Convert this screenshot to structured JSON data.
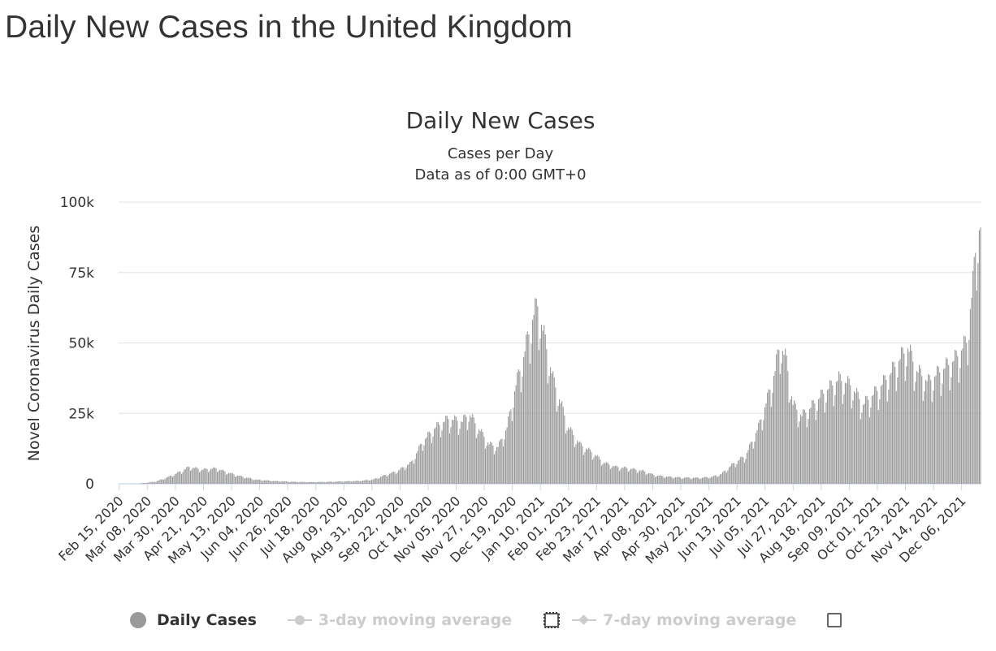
{
  "page": {
    "title": "Daily New Cases in the United Kingdom"
  },
  "chart_data": {
    "type": "bar",
    "title": "Daily New Cases",
    "subtitle_lines": [
      "Cases per Day",
      "Data as of 0:00 GMT+0"
    ],
    "ylabel": "Novel Coronavirus Daily Cases",
    "ylim": [
      0,
      100000
    ],
    "y_ticks": [
      0,
      25000,
      50000,
      75000,
      100000
    ],
    "y_tick_labels": [
      "0",
      "25k",
      "50k",
      "75k",
      "100k"
    ],
    "x_start": "2020-02-15",
    "x_end": "2021-12-21",
    "x_tick_labels": [
      "Feb 15, 2020",
      "Mar 08, 2020",
      "Mar 30, 2020",
      "Apr 21, 2020",
      "May 13, 2020",
      "Jun 04, 2020",
      "Jun 26, 2020",
      "Jul 18, 2020",
      "Aug 09, 2020",
      "Aug 31, 2020",
      "Sep 22, 2020",
      "Oct 14, 2020",
      "Nov 05, 2020",
      "Nov 27, 2020",
      "Dec 19, 2020",
      "Jan 10, 2021",
      "Feb 01, 2021",
      "Feb 23, 2021",
      "Mar 17, 2021",
      "Apr 08, 2021",
      "Apr 30, 2021",
      "May 22, 2021",
      "Jun 13, 2021",
      "Jul 05, 2021",
      "Jul 27, 2021",
      "Aug 18, 2021",
      "Sep 09, 2021",
      "Oct 01, 2021",
      "Oct 23, 2021",
      "Nov 14, 2021",
      "Dec 06, 2021"
    ],
    "grid": true,
    "bar_color": "#999999",
    "series": [
      {
        "name": "Daily Cases",
        "anchors": [
          [
            "2020-02-15",
            0
          ],
          [
            "2020-03-01",
            50
          ],
          [
            "2020-03-15",
            800
          ],
          [
            "2020-03-25",
            2500
          ],
          [
            "2020-04-04",
            4500
          ],
          [
            "2020-04-10",
            6000
          ],
          [
            "2020-04-20",
            5000
          ],
          [
            "2020-05-01",
            5500
          ],
          [
            "2020-05-10",
            4000
          ],
          [
            "2020-05-20",
            2700
          ],
          [
            "2020-06-01",
            1500
          ],
          [
            "2020-06-15",
            1000
          ],
          [
            "2020-07-01",
            700
          ],
          [
            "2020-07-15",
            600
          ],
          [
            "2020-08-01",
            750
          ],
          [
            "2020-08-20",
            1000
          ],
          [
            "2020-09-01",
            1500
          ],
          [
            "2020-09-10",
            3000
          ],
          [
            "2020-09-20",
            4500
          ],
          [
            "2020-10-01",
            7500
          ],
          [
            "2020-10-10",
            15000
          ],
          [
            "2020-10-20",
            20000
          ],
          [
            "2020-10-30",
            23000
          ],
          [
            "2020-11-10",
            22000
          ],
          [
            "2020-11-15",
            25000
          ],
          [
            "2020-11-25",
            18000
          ],
          [
            "2020-12-01",
            14000
          ],
          [
            "2020-12-08",
            13000
          ],
          [
            "2020-12-15",
            20000
          ],
          [
            "2020-12-22",
            35000
          ],
          [
            "2020-12-28",
            45000
          ],
          [
            "2021-01-01",
            53000
          ],
          [
            "2021-01-05",
            60000
          ],
          [
            "2021-01-08",
            63000
          ],
          [
            "2021-01-14",
            50000
          ],
          [
            "2021-01-20",
            37000
          ],
          [
            "2021-01-25",
            30000
          ],
          [
            "2021-02-01",
            20000
          ],
          [
            "2021-02-10",
            14000
          ],
          [
            "2021-02-20",
            11000
          ],
          [
            "2021-03-01",
            7500
          ],
          [
            "2021-03-10",
            6000
          ],
          [
            "2021-03-20",
            5500
          ],
          [
            "2021-04-01",
            4500
          ],
          [
            "2021-04-10",
            3000
          ],
          [
            "2021-04-20",
            2500
          ],
          [
            "2021-05-01",
            2200
          ],
          [
            "2021-05-15",
            2100
          ],
          [
            "2021-05-25",
            2500
          ],
          [
            "2021-06-01",
            3500
          ],
          [
            "2021-06-10",
            7000
          ],
          [
            "2021-06-20",
            10000
          ],
          [
            "2021-06-30",
            20000
          ],
          [
            "2021-07-07",
            30000
          ],
          [
            "2021-07-13",
            40000
          ],
          [
            "2021-07-17",
            50000
          ],
          [
            "2021-07-22",
            43000
          ],
          [
            "2021-07-27",
            28000
          ],
          [
            "2021-08-03",
            24000
          ],
          [
            "2021-08-10",
            27000
          ],
          [
            "2021-08-20",
            32000
          ],
          [
            "2021-09-01",
            37000
          ],
          [
            "2021-09-10",
            35000
          ],
          [
            "2021-09-20",
            28000
          ],
          [
            "2021-10-01",
            33000
          ],
          [
            "2021-10-10",
            38000
          ],
          [
            "2021-10-20",
            45000
          ],
          [
            "2021-10-25",
            48000
          ],
          [
            "2021-11-01",
            40000
          ],
          [
            "2021-11-10",
            36000
          ],
          [
            "2021-11-20",
            40000
          ],
          [
            "2021-12-01",
            44000
          ],
          [
            "2021-12-10",
            50000
          ],
          [
            "2021-12-15",
            70000
          ],
          [
            "2021-12-18",
            88000
          ],
          [
            "2021-12-21",
            91000
          ]
        ]
      }
    ]
  },
  "legend": {
    "items": [
      {
        "label": "Daily Cases",
        "active": true
      },
      {
        "label": "3-day moving average",
        "active": false
      },
      {
        "label": "7-day moving average",
        "active": false
      }
    ]
  },
  "colors": {
    "bars": "#999999",
    "grid": "#e6e6e6",
    "axis_line": "#ccd6eb",
    "text": "#333333",
    "muted": "#cccccc"
  }
}
